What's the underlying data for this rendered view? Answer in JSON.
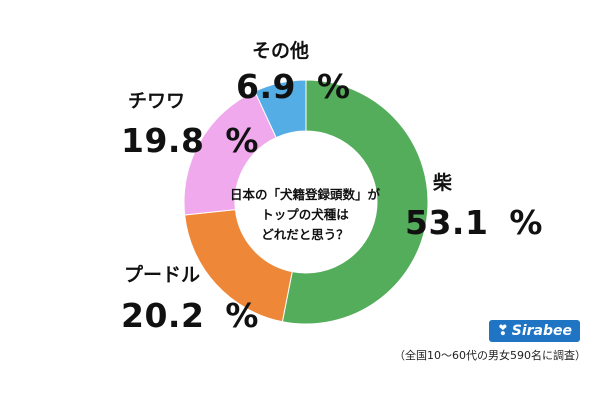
{
  "chart_data": {
    "type": "pie",
    "variant": "donut",
    "categories": [
      "柴",
      "プードル",
      "チワワ",
      "その他"
    ],
    "values": [
      53.1,
      20.2,
      19.8,
      6.9
    ],
    "value_labels": [
      "53.1 ",
      "20.2 ",
      "19.8 ",
      "6.9 "
    ],
    "percent_sign": "%",
    "colors": [
      "#54ad5b",
      "#ee8738",
      "#f0a9ec",
      "#55ade6"
    ],
    "title": "日本の「犬籍登録頭数」がトップの犬種はどれだと思う？",
    "title_lines": [
      "日本の「犬籍登録頭数」が",
      "トップの犬種は",
      "どれだと思う？"
    ]
  },
  "brand": {
    "name": "Sirabee",
    "icon": "sirabee-logo-icon"
  },
  "source": "（全国10～60代の男女590名に調査）"
}
